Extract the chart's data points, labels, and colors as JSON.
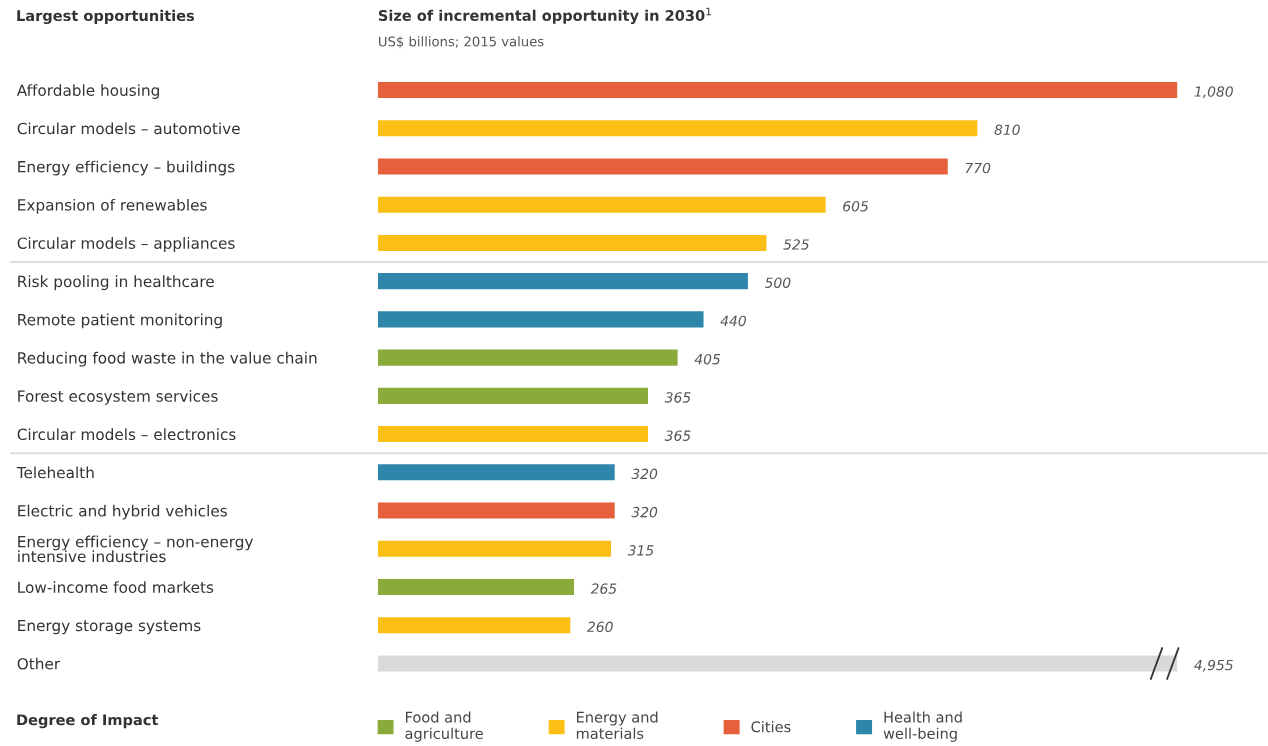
{
  "chart_data": [
    {
      "type": "bar",
      "orientation": "horizontal",
      "title": "Size of incremental opportunity in 2030$^{1}$",
      "subtitle": "US$ billions; 2015 values",
      "ylabel": "Largest opportunities",
      "legend_title": "Degree of Impact",
      "categories": [
        "Affordable housing",
        "Circular models – automotive",
        "Energy efficiency – buildings",
        "Expansion of renewables",
        "Circular models – appliances",
        "Risk pooling in healthcare",
        "Remote patient monitoring",
        "Reducing food waste in the value chain",
        "Forest ecosystem services",
        "Circular models – electronics",
        "Telehealth",
        "Electric and hybrid vehicles",
        "Energy efficiency – non-energy\nintensive industries",
        "Low-income food markets",
        "Energy storage systems"
      ],
      "series": [
        {
          "name": "Food and\nagriculture",
          "color": "#8aab3a",
          "values": [
            null,
            null,
            null,
            null,
            null,
            null,
            null,
            405,
            365,
            null,
            null,
            null,
            null,
            265,
            null
          ],
          "value_labels": [
            null,
            null,
            null,
            null,
            null,
            null,
            null,
            "405",
            "365",
            null,
            null,
            null,
            null,
            "265",
            null
          ]
        },
        {
          "name": "Energy and\nmaterials",
          "color": "#fbbf16",
          "values": [
            null,
            810,
            null,
            605,
            525,
            null,
            null,
            null,
            null,
            365,
            null,
            null,
            315,
            null,
            260
          ],
          "value_labels": [
            null,
            "810",
            null,
            "605",
            "525",
            null,
            null,
            null,
            null,
            "365",
            null,
            null,
            "315",
            null,
            "260"
          ]
        },
        {
          "name": "Cities",
          "color": "#e5603b",
          "values": [
            1080,
            null,
            770,
            null,
            null,
            null,
            null,
            null,
            null,
            null,
            null,
            320,
            null,
            null,
            null
          ],
          "value_labels": [
            "1,080",
            null,
            "770",
            null,
            null,
            null,
            null,
            null,
            null,
            null,
            null,
            "320",
            null,
            null,
            null
          ]
        },
        {
          "name": "Health and\nwell-being",
          "color": "#2e86ab",
          "values": [
            null,
            null,
            null,
            null,
            null,
            500,
            440,
            null,
            null,
            null,
            320,
            null,
            null,
            null,
            null
          ],
          "value_labels": [
            null,
            null,
            null,
            null,
            null,
            "500",
            "440",
            null,
            null,
            null,
            "320",
            null,
            null,
            null,
            null
          ]
        }
      ],
      "tick_labels": "y",
      "grid": false,
      "legend": "bottom"
    },
    {
      "type": "bar",
      "orientation": "horizontal",
      "categories": [
        "Other"
      ],
      "series": [
        {
          "color": "#d9d9d9",
          "values": [
            4955
          ],
          "value_labels": [
            "4,955"
          ]
        }
      ],
      "tick_labels": "y",
      "grid": false
    }
  ]
}
